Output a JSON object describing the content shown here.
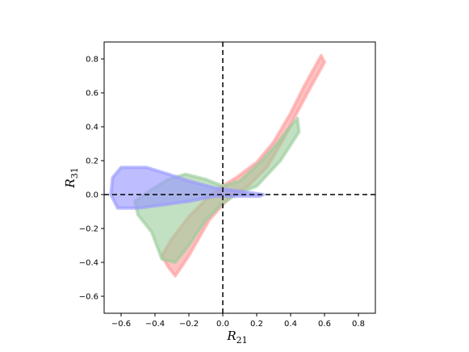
{
  "chart_data": {
    "type": "scatter",
    "title": "",
    "xlabel": {
      "base": "R",
      "sub": "21"
    },
    "ylabel": {
      "base": "R",
      "sub": "31"
    },
    "xlim": [
      -0.7,
      0.9
    ],
    "ylim": [
      -0.7,
      0.9
    ],
    "xticks": [
      -0.6,
      -0.4,
      -0.2,
      0.0,
      0.2,
      0.4,
      0.6,
      0.8
    ],
    "yticks": [
      -0.6,
      -0.4,
      -0.2,
      0.0,
      0.2,
      0.4,
      0.6,
      0.8
    ],
    "xtick_labels": [
      "−0.6",
      "−0.4",
      "−0.2",
      "0.0",
      "0.2",
      "0.4",
      "0.6",
      "0.8"
    ],
    "ytick_labels": [
      "−0.6",
      "−0.4",
      "−0.2",
      "0.0",
      "0.2",
      "0.4",
      "0.6",
      "0.8"
    ],
    "reference_lines": [
      {
        "orientation": "horizontal",
        "value": 0.0,
        "style": "dashed",
        "color": "#000000"
      },
      {
        "orientation": "vertical",
        "value": 0.0,
        "style": "dashed",
        "color": "#000000"
      }
    ],
    "grid": false,
    "legend": "none",
    "series": [
      {
        "color": "#ff9999",
        "opacity": 0.6,
        "outline": [
          [
            0.58,
            0.82
          ],
          [
            0.6,
            0.78
          ],
          [
            0.5,
            0.6
          ],
          [
            0.42,
            0.45
          ],
          [
            0.36,
            0.33
          ],
          [
            0.26,
            0.16
          ],
          [
            0.15,
            0.05
          ],
          [
            0.05,
            -0.01
          ],
          [
            0.0,
            -0.06
          ],
          [
            -0.08,
            -0.15
          ],
          [
            -0.2,
            -0.36
          ],
          [
            -0.28,
            -0.48
          ],
          [
            -0.32,
            -0.43
          ],
          [
            -0.36,
            -0.36
          ],
          [
            -0.3,
            -0.26
          ],
          [
            -0.2,
            -0.13
          ],
          [
            -0.1,
            -0.03
          ],
          [
            -0.02,
            0.04
          ],
          [
            0.08,
            0.1
          ],
          [
            0.2,
            0.19
          ],
          [
            0.3,
            0.31
          ],
          [
            0.4,
            0.48
          ],
          [
            0.48,
            0.64
          ]
        ]
      },
      {
        "color": "#99cc99",
        "opacity": 0.6,
        "outline": [
          [
            0.44,
            0.45
          ],
          [
            0.45,
            0.37
          ],
          [
            0.34,
            0.2
          ],
          [
            0.2,
            0.05
          ],
          [
            0.08,
            0.0
          ],
          [
            0.0,
            -0.05
          ],
          [
            -0.1,
            -0.15
          ],
          [
            -0.2,
            -0.3
          ],
          [
            -0.28,
            -0.4
          ],
          [
            -0.36,
            -0.38
          ],
          [
            -0.42,
            -0.22
          ],
          [
            -0.5,
            -0.12
          ],
          [
            -0.52,
            -0.04
          ],
          [
            -0.42,
            0.03
          ],
          [
            -0.32,
            0.09
          ],
          [
            -0.22,
            0.12
          ],
          [
            -0.1,
            0.09
          ],
          [
            0.0,
            0.05
          ],
          [
            0.1,
            0.08
          ],
          [
            0.22,
            0.19
          ],
          [
            0.32,
            0.3
          ],
          [
            0.38,
            0.38
          ]
        ]
      },
      {
        "color": "#9999ff",
        "opacity": 0.65,
        "outline": [
          [
            -0.6,
            0.16
          ],
          [
            -0.45,
            0.16
          ],
          [
            -0.32,
            0.12
          ],
          [
            -0.2,
            0.08
          ],
          [
            -0.05,
            0.04
          ],
          [
            0.1,
            0.02
          ],
          [
            0.24,
            0.0
          ],
          [
            0.22,
            -0.01
          ],
          [
            0.1,
            -0.01
          ],
          [
            -0.05,
            -0.01
          ],
          [
            -0.2,
            -0.04
          ],
          [
            -0.35,
            -0.06
          ],
          [
            -0.5,
            -0.08
          ],
          [
            -0.62,
            -0.08
          ],
          [
            -0.66,
            0.0
          ],
          [
            -0.65,
            0.1
          ]
        ]
      }
    ]
  }
}
